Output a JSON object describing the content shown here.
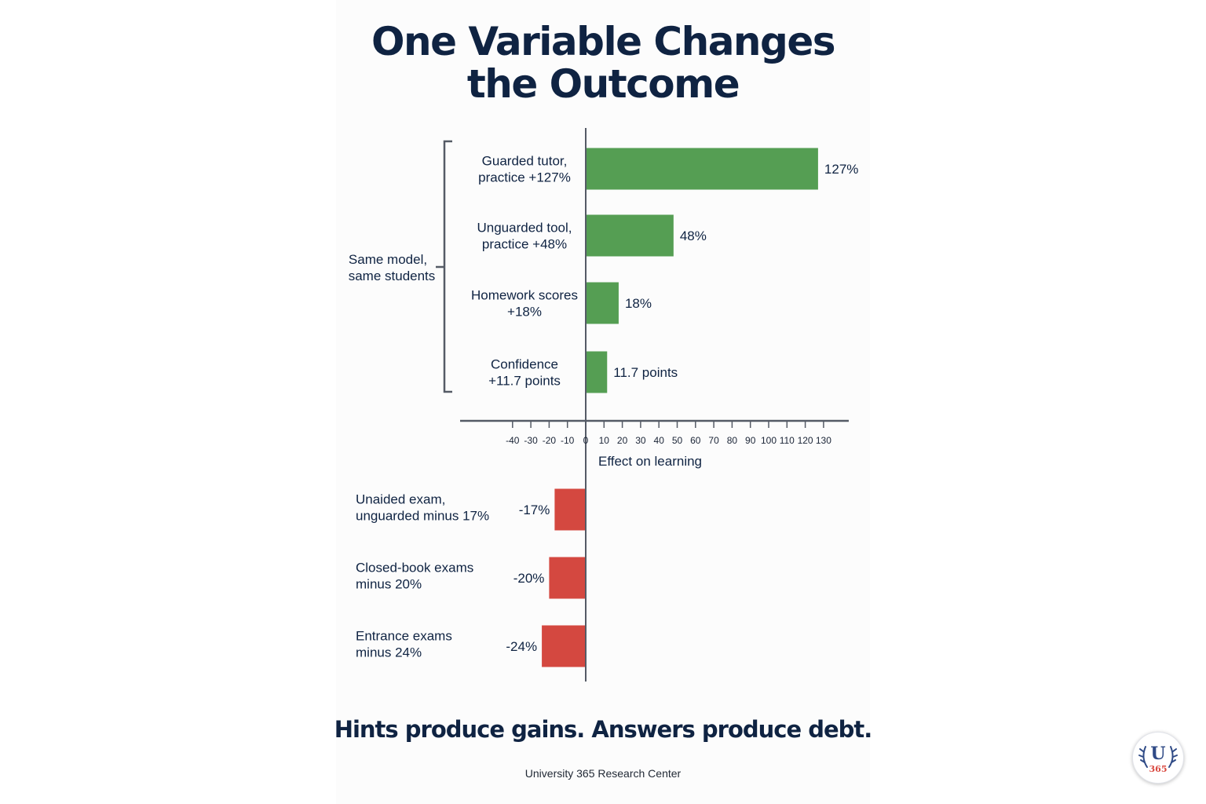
{
  "header": {
    "title_line1": "One Variable Changes",
    "title_line2": "the Outcome"
  },
  "bracket_label": {
    "line1": "Same model,",
    "line2": "same students"
  },
  "chart_data": {
    "type": "bar",
    "orientation": "horizontal",
    "xlabel": "Effect on learning",
    "xlim": [
      -40,
      130
    ],
    "xticks": [
      -40,
      -30,
      -20,
      -10,
      0,
      10,
      20,
      30,
      40,
      50,
      60,
      70,
      80,
      90,
      100,
      110,
      120,
      130
    ],
    "gain_color": "#559e53",
    "loss_color": "#d44840",
    "gains": [
      {
        "label_lines": [
          "Guarded tutor,",
          "practice +127%"
        ],
        "value": 127,
        "value_label": "127%"
      },
      {
        "label_lines": [
          "Unguarded tool,",
          "practice +48%"
        ],
        "value": 48,
        "value_label": "48%"
      },
      {
        "label_lines": [
          "Homework scores",
          "+18%"
        ],
        "value": 18,
        "value_label": "18%"
      },
      {
        "label_lines": [
          "Confidence",
          "+11.7 points"
        ],
        "value": 11.7,
        "value_label": "11.7 points"
      }
    ],
    "losses": [
      {
        "label_lines": [
          "Unaided exam,",
          "unguarded minus 17%"
        ],
        "value": -17,
        "value_label": "-17%"
      },
      {
        "label_lines": [
          "Closed-book exams",
          "minus 20%"
        ],
        "value": -20,
        "value_label": "-20%"
      },
      {
        "label_lines": [
          "Entrance exams",
          "minus 24%"
        ],
        "value": -24,
        "value_label": "-24%"
      }
    ]
  },
  "footer": {
    "tagline": "Hints produce gains. Answers produce debt.",
    "credit": "University 365 Research Center"
  },
  "logo": {
    "letter": "U",
    "number": "365"
  }
}
